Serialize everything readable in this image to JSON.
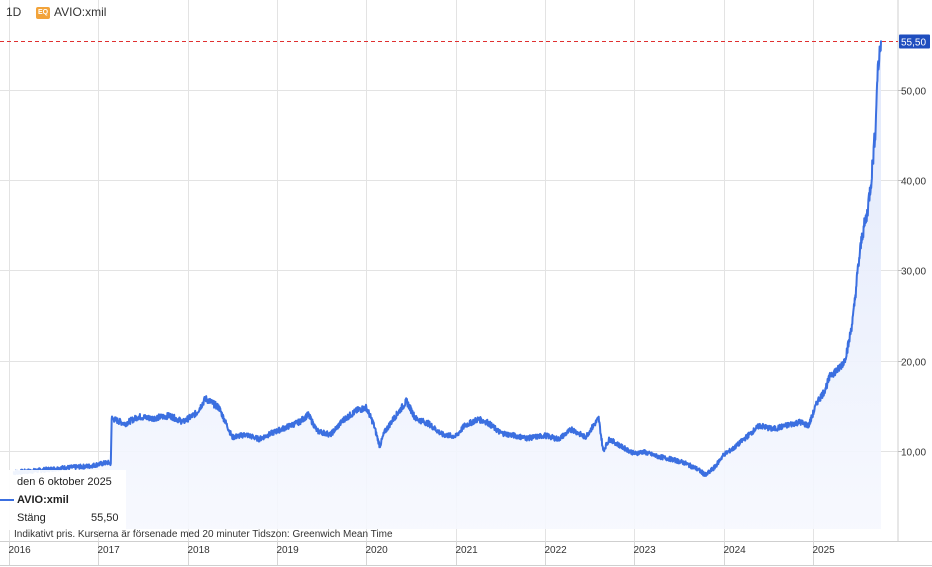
{
  "header": {
    "timeframe": "1D",
    "badge": "EQ",
    "symbol": "AVIO:xmil"
  },
  "legend": {
    "date": "den 6 oktober 2025",
    "series": "AVIO:xmil",
    "close_label": "Stäng",
    "close_value": "55,50"
  },
  "footnote": "Indikativt pris. Kurserna är försenade med 20 minuter   Tidszon: Greenwich Mean Time",
  "colors": {
    "line": "#3b6fe0",
    "area_top": "#dfe7fb",
    "last_price_line": "#e03030",
    "price_tag_bg": "#1f4ebf",
    "grid": "#e3e3e3"
  },
  "chart_data": {
    "type": "area",
    "title": "",
    "series_name": "AVIO:xmil",
    "last_price": 55.5,
    "last_price_label": "55,50",
    "y_ticks": [
      10,
      20,
      30,
      40,
      50
    ],
    "y_tick_labels": [
      "10,00",
      "20,00",
      "30,00",
      "40,00",
      "50,00"
    ],
    "ylim": [
      0,
      58
    ],
    "x_ticks": [
      2016,
      2017,
      2018,
      2019,
      2020,
      2021,
      2022,
      2023,
      2024,
      2025
    ],
    "x_tick_labels": [
      "2016",
      "2017",
      "2018",
      "2019",
      "2020",
      "2021",
      "2022",
      "2023",
      "2024",
      "2025"
    ],
    "xlim": [
      2015.9,
      2025.95
    ],
    "grid": true,
    "x": [
      2016.05,
      2016.3,
      2016.6,
      2016.9,
      2017.1,
      2017.14,
      2017.15,
      2017.3,
      2017.45,
      2017.6,
      2017.8,
      2017.95,
      2018.1,
      2018.2,
      2018.35,
      2018.5,
      2018.65,
      2018.8,
      2018.95,
      2019.1,
      2019.25,
      2019.35,
      2019.45,
      2019.6,
      2019.75,
      2019.9,
      2020.0,
      2020.08,
      2020.15,
      2020.2,
      2020.3,
      2020.45,
      2020.55,
      2020.7,
      2020.85,
      2021.0,
      2021.1,
      2021.25,
      2021.35,
      2021.5,
      2021.65,
      2021.8,
      2022.0,
      2022.15,
      2022.3,
      2022.45,
      2022.6,
      2022.65,
      2022.72,
      2022.85,
      2023.0,
      2023.1,
      2023.25,
      2023.4,
      2023.55,
      2023.7,
      2023.8,
      2023.9,
      2024.0,
      2024.1,
      2024.25,
      2024.4,
      2024.55,
      2024.7,
      2024.85,
      2024.95,
      2025.05,
      2025.12,
      2025.2,
      2025.28,
      2025.35,
      2025.4,
      2025.45,
      2025.5,
      2025.55,
      2025.6,
      2025.65,
      2025.7,
      2025.72,
      2025.76
    ],
    "values": [
      7.6,
      7.8,
      8.1,
      8.3,
      8.7,
      8.6,
      13.6,
      13.0,
      13.8,
      13.6,
      13.9,
      13.2,
      14.2,
      15.8,
      14.8,
      11.5,
      11.8,
      11.3,
      12.0,
      12.6,
      13.2,
      14.0,
      12.2,
      11.8,
      13.5,
      14.5,
      14.8,
      13.0,
      10.5,
      12.0,
      13.5,
      15.5,
      13.6,
      13.0,
      11.8,
      11.6,
      12.8,
      13.5,
      13.2,
      12.0,
      11.7,
      11.4,
      11.7,
      11.3,
      12.4,
      11.5,
      13.6,
      10.0,
      11.3,
      10.5,
      9.7,
      9.9,
      9.4,
      9.1,
      8.7,
      8.0,
      7.3,
      8.2,
      9.6,
      10.2,
      11.5,
      12.8,
      12.4,
      12.8,
      13.2,
      12.8,
      15.5,
      16.5,
      18.5,
      19.0,
      20.0,
      22.0,
      25.0,
      30.0,
      34.0,
      36.0,
      40.0,
      46.0,
      52.0,
      55.5
    ]
  }
}
